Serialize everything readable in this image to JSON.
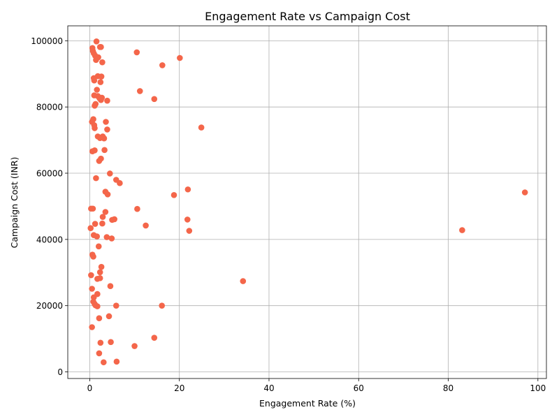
{
  "chart_data": {
    "type": "scatter",
    "title": "Engagement Rate vs Campaign Cost",
    "xlabel": "Engagement Rate (%)",
    "ylabel": "Campaign Cost (INR)",
    "xlim": [
      -4.9,
      101.9
    ],
    "ylim": [
      -2000,
      104500
    ],
    "xticks": [
      0,
      20,
      40,
      60,
      80,
      100
    ],
    "yticks": [
      0,
      20000,
      40000,
      60000,
      80000,
      100000
    ],
    "grid": true,
    "marker_color": "#f4664a",
    "points": [
      {
        "x": 1.5,
        "y": 99800
      },
      {
        "x": 0.6,
        "y": 97800
      },
      {
        "x": 2.3,
        "y": 98100
      },
      {
        "x": 2.5,
        "y": 98100
      },
      {
        "x": 0.7,
        "y": 96900
      },
      {
        "x": 0.9,
        "y": 96200
      },
      {
        "x": 1.2,
        "y": 95500
      },
      {
        "x": 1.9,
        "y": 95000
      },
      {
        "x": 1.4,
        "y": 94200
      },
      {
        "x": 2.8,
        "y": 93500
      },
      {
        "x": 10.5,
        "y": 96500
      },
      {
        "x": 20.1,
        "y": 94800
      },
      {
        "x": 16.2,
        "y": 92600
      },
      {
        "x": 1.8,
        "y": 89300
      },
      {
        "x": 2.6,
        "y": 89200
      },
      {
        "x": 0.9,
        "y": 88700
      },
      {
        "x": 1.0,
        "y": 88000
      },
      {
        "x": 2.4,
        "y": 87500
      },
      {
        "x": 1.6,
        "y": 85200
      },
      {
        "x": 11.2,
        "y": 84800
      },
      {
        "x": 1.0,
        "y": 83500
      },
      {
        "x": 1.8,
        "y": 83300
      },
      {
        "x": 2.2,
        "y": 82600
      },
      {
        "x": 2.7,
        "y": 82800
      },
      {
        "x": 2.5,
        "y": 82100
      },
      {
        "x": 3.9,
        "y": 81900
      },
      {
        "x": 14.4,
        "y": 82400
      },
      {
        "x": 1.3,
        "y": 80900
      },
      {
        "x": 1.1,
        "y": 80400
      },
      {
        "x": 0.5,
        "y": 75500
      },
      {
        "x": 0.8,
        "y": 76300
      },
      {
        "x": 1.0,
        "y": 74500
      },
      {
        "x": 1.1,
        "y": 73600
      },
      {
        "x": 3.6,
        "y": 75500
      },
      {
        "x": 3.9,
        "y": 73200
      },
      {
        "x": 24.9,
        "y": 73800
      },
      {
        "x": 1.8,
        "y": 71100
      },
      {
        "x": 2.3,
        "y": 70600
      },
      {
        "x": 2.9,
        "y": 71100
      },
      {
        "x": 3.2,
        "y": 70500
      },
      {
        "x": 0.6,
        "y": 66600
      },
      {
        "x": 1.1,
        "y": 66900
      },
      {
        "x": 3.3,
        "y": 67000
      },
      {
        "x": 2.1,
        "y": 63700
      },
      {
        "x": 2.5,
        "y": 64400
      },
      {
        "x": 4.5,
        "y": 59900
      },
      {
        "x": 1.4,
        "y": 58500
      },
      {
        "x": 5.9,
        "y": 58000
      },
      {
        "x": 6.7,
        "y": 57000
      },
      {
        "x": 3.5,
        "y": 54400
      },
      {
        "x": 4.0,
        "y": 53600
      },
      {
        "x": 18.8,
        "y": 53400
      },
      {
        "x": 21.9,
        "y": 55100
      },
      {
        "x": 97.1,
        "y": 54200
      },
      {
        "x": 0.3,
        "y": 49300
      },
      {
        "x": 0.7,
        "y": 49300
      },
      {
        "x": 3.5,
        "y": 48300
      },
      {
        "x": 10.6,
        "y": 49200
      },
      {
        "x": 2.9,
        "y": 46800
      },
      {
        "x": 5.0,
        "y": 45900
      },
      {
        "x": 5.5,
        "y": 46100
      },
      {
        "x": 1.2,
        "y": 44700
      },
      {
        "x": 2.8,
        "y": 44800
      },
      {
        "x": 12.5,
        "y": 44200
      },
      {
        "x": 21.8,
        "y": 46000
      },
      {
        "x": 0.2,
        "y": 43400
      },
      {
        "x": 22.2,
        "y": 42600
      },
      {
        "x": 83.1,
        "y": 42800
      },
      {
        "x": 0.9,
        "y": 41300
      },
      {
        "x": 1.6,
        "y": 40900
      },
      {
        "x": 3.8,
        "y": 40700
      },
      {
        "x": 4.9,
        "y": 40300
      },
      {
        "x": 2.0,
        "y": 37900
      },
      {
        "x": 0.6,
        "y": 35400
      },
      {
        "x": 0.8,
        "y": 34800
      },
      {
        "x": 2.6,
        "y": 31700
      },
      {
        "x": 2.3,
        "y": 30100
      },
      {
        "x": 0.3,
        "y": 29200
      },
      {
        "x": 1.7,
        "y": 28100
      },
      {
        "x": 2.3,
        "y": 28300
      },
      {
        "x": 34.2,
        "y": 27400
      },
      {
        "x": 0.5,
        "y": 25100
      },
      {
        "x": 4.6,
        "y": 25900
      },
      {
        "x": 1.7,
        "y": 23500
      },
      {
        "x": 0.9,
        "y": 22500
      },
      {
        "x": 0.8,
        "y": 21200
      },
      {
        "x": 1.1,
        "y": 20500
      },
      {
        "x": 1.3,
        "y": 20100
      },
      {
        "x": 1.7,
        "y": 19800
      },
      {
        "x": 5.9,
        "y": 20000
      },
      {
        "x": 16.1,
        "y": 20000
      },
      {
        "x": 2.1,
        "y": 16200
      },
      {
        "x": 4.3,
        "y": 16800
      },
      {
        "x": 0.5,
        "y": 13500
      },
      {
        "x": 14.4,
        "y": 10300
      },
      {
        "x": 2.4,
        "y": 8800
      },
      {
        "x": 4.7,
        "y": 9000
      },
      {
        "x": 10.0,
        "y": 7800
      },
      {
        "x": 2.1,
        "y": 5600
      },
      {
        "x": 3.1,
        "y": 2900
      },
      {
        "x": 6.0,
        "y": 3100
      }
    ]
  }
}
